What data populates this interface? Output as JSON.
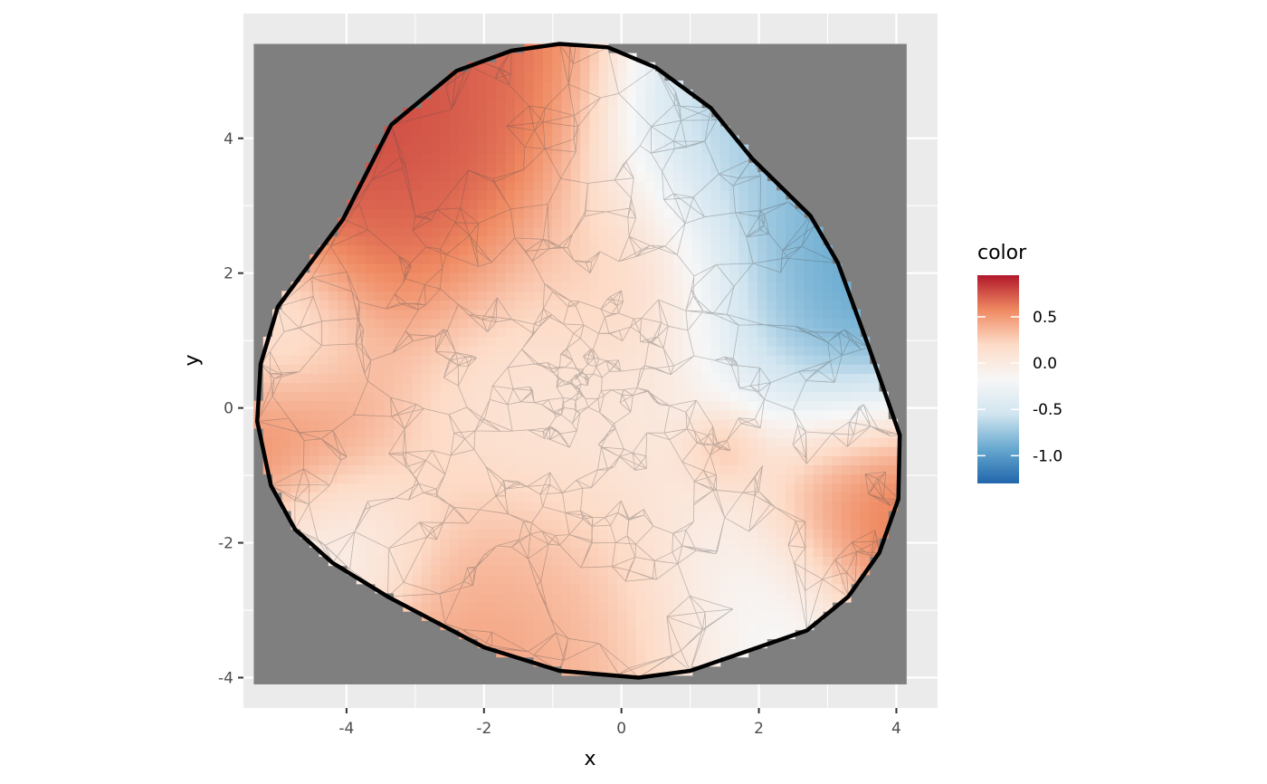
{
  "chart_data": {
    "type": "heatmap",
    "title": "",
    "xlabel": "x",
    "ylabel": "y",
    "xlim": [
      -5.5,
      4.6
    ],
    "ylim": [
      -4.45,
      5.85
    ],
    "grid": true,
    "x_ticks": [
      -4,
      -2,
      0,
      2,
      4
    ],
    "y_ticks": [
      -4,
      -2,
      0,
      2,
      4
    ],
    "x_tick_labels": [
      "-4",
      "-2",
      "0",
      "2",
      "4"
    ],
    "y_tick_labels": [
      "-4",
      "-2",
      "0",
      "2",
      "4"
    ],
    "raster_extent": {
      "x": [
        -5.35,
        4.15
      ],
      "y": [
        -4.1,
        5.4
      ]
    },
    "background_fill": "#7f7f7f",
    "legend": {
      "title": "color",
      "placement": "right",
      "range": [
        -1.3,
        0.95
      ],
      "ticks": [
        0.5,
        0.0,
        -0.5,
        -1.0
      ],
      "tick_labels": [
        "0.5",
        "0.0",
        "-0.5",
        "-1.0"
      ],
      "colors": [
        "#b2182b",
        "#ef8a62",
        "#fddbc7",
        "#f7f7f7",
        "#d1e5f0",
        "#67a9cf",
        "#2166ac"
      ]
    },
    "boundary": [
      [
        -0.9,
        5.4
      ],
      [
        -0.2,
        5.35
      ],
      [
        0.5,
        5.05
      ],
      [
        1.3,
        4.45
      ],
      [
        1.9,
        3.7
      ],
      [
        2.75,
        2.85
      ],
      [
        3.15,
        2.15
      ],
      [
        3.6,
        0.9
      ],
      [
        4.05,
        -0.4
      ],
      [
        4.03,
        -1.35
      ],
      [
        3.75,
        -2.15
      ],
      [
        3.3,
        -2.8
      ],
      [
        2.7,
        -3.3
      ],
      [
        1.0,
        -3.9
      ],
      [
        0.25,
        -4.0
      ],
      [
        -0.9,
        -3.9
      ],
      [
        -2.0,
        -3.55
      ],
      [
        -3.4,
        -2.8
      ],
      [
        -4.2,
        -2.3
      ],
      [
        -4.75,
        -1.8
      ],
      [
        -5.1,
        -1.15
      ],
      [
        -5.3,
        -0.2
      ],
      [
        -5.25,
        0.65
      ],
      [
        -5.0,
        1.5
      ],
      [
        -4.05,
        2.8
      ],
      [
        -3.35,
        4.2
      ],
      [
        -2.4,
        5.0
      ],
      [
        -1.6,
        5.3
      ]
    ],
    "color_sources": [
      {
        "x": -3.2,
        "y": 3.9,
        "value": 1.0,
        "spread": 1.5
      },
      {
        "x": -2.3,
        "y": 4.7,
        "value": 0.6,
        "spread": 1.2
      },
      {
        "x": -3.9,
        "y": 2.9,
        "value": 0.6,
        "spread": 1.0
      },
      {
        "x": 2.8,
        "y": 2.6,
        "value": -1.1,
        "spread": 1.3
      },
      {
        "x": 3.3,
        "y": 1.3,
        "value": -1.1,
        "spread": 1.1
      },
      {
        "x": 1.8,
        "y": 3.9,
        "value": -0.7,
        "spread": 1.3
      },
      {
        "x": 0.2,
        "y": 2.1,
        "value": 0.45,
        "spread": 0.9
      },
      {
        "x": -5.0,
        "y": -0.2,
        "value": 0.65,
        "spread": 1.1
      },
      {
        "x": -5.0,
        "y": 1.2,
        "value": -0.2,
        "spread": 0.8
      },
      {
        "x": 3.7,
        "y": -1.3,
        "value": 0.8,
        "spread": 1.0
      },
      {
        "x": -1.8,
        "y": -3.2,
        "value": 0.55,
        "spread": 1.3
      },
      {
        "x": 0.0,
        "y": -3.3,
        "value": 0.4,
        "spread": 1.0
      },
      {
        "x": 1.5,
        "y": -0.6,
        "value": 0.5,
        "spread": 0.35
      },
      {
        "x": 1.6,
        "y": -3.0,
        "value": -0.35,
        "spread": 1.0
      },
      {
        "x": -4.1,
        "y": -2.1,
        "value": -0.2,
        "spread": 0.8
      },
      {
        "x": 0.0,
        "y": 0.0,
        "value": 0.05,
        "spread": 2.5
      }
    ],
    "mesh_center": [
      -0.6,
      0.5
    ]
  }
}
